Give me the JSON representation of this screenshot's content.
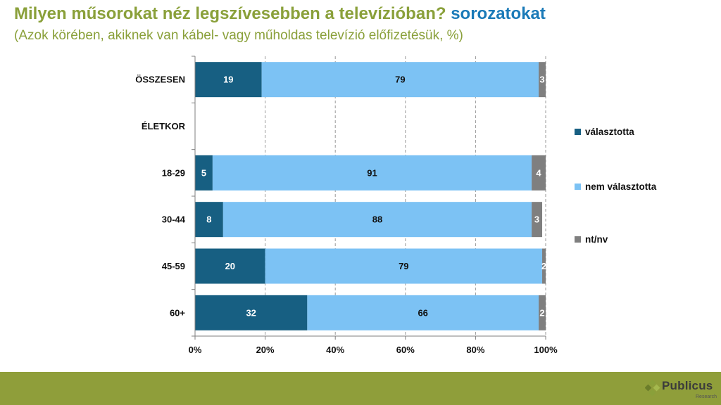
{
  "header": {
    "title_main": "Milyen műsorokat néz legszívesebben a televízióban?",
    "title_highlight": "sorozatokat",
    "subtitle": "(Azok körében, akiknek van kábel- vagy műholdas televízió előfizetésük, %)"
  },
  "colors": {
    "valasztotta": "#175f82",
    "nem_valasztotta": "#7cc2f4",
    "ntnv": "#7f7f7f",
    "title_green": "#8aa03a",
    "title_blue": "#1a7ab8",
    "footer": "#8f9e3a"
  },
  "chart_data": {
    "type": "bar",
    "orientation": "horizontal",
    "stacked": true,
    "unit": "%",
    "categories": [
      "ÖSSZESEN",
      "ÉLETKOR",
      "18-29",
      "30-44",
      "45-59",
      "60+"
    ],
    "series": [
      {
        "name": "választotta",
        "values": [
          19,
          null,
          5,
          8,
          20,
          32
        ]
      },
      {
        "name": "nem választotta",
        "values": [
          79,
          null,
          91,
          88,
          79,
          66
        ]
      },
      {
        "name": "nt/nv",
        "values": [
          3,
          null,
          4,
          3,
          2,
          2
        ]
      }
    ],
    "xlim": [
      0,
      100
    ],
    "xticks": [
      "0%",
      "20%",
      "40%",
      "60%",
      "80%",
      "100%"
    ],
    "grid": "vertical dashed",
    "legend_position": "right"
  },
  "legend": {
    "items": [
      "választotta",
      "nem választotta",
      "nt/nv"
    ]
  },
  "logo": {
    "name": "Publicus",
    "sub": "Research"
  }
}
